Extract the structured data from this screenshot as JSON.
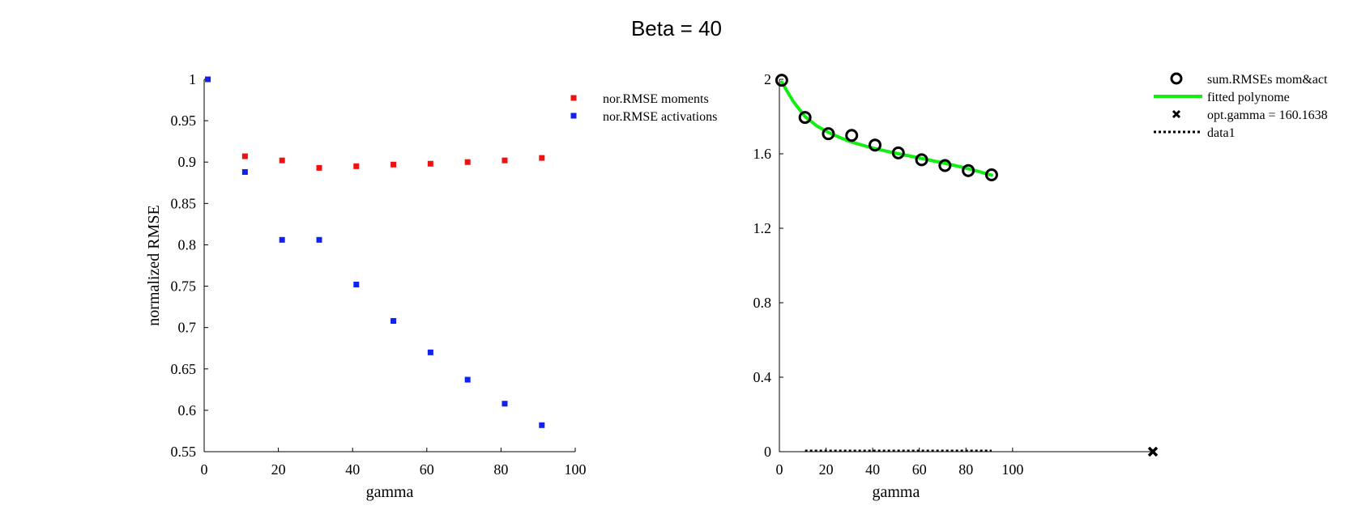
{
  "figure": {
    "title": "Beta = 40"
  },
  "chart_data": [
    {
      "type": "scatter",
      "title": "",
      "xlabel": "gamma",
      "ylabel": "normalized RMSE",
      "xlim": [
        0,
        100
      ],
      "ylim": [
        0.55,
        1
      ],
      "xticks": [
        "0",
        "20",
        "40",
        "60",
        "80",
        "100"
      ],
      "yticks": [
        "0.55",
        "0.6",
        "0.65",
        "0.7",
        "0.75",
        "0.8",
        "0.85",
        "0.9",
        "0.95",
        "1"
      ],
      "grid": false,
      "legend_position": "top-right",
      "series": [
        {
          "name": "nor.RMSE moments",
          "color": "#ee1111",
          "marker": "square",
          "x": [
            11,
            21,
            31,
            41,
            51,
            61,
            71,
            81,
            91
          ],
          "y": [
            0.907,
            0.902,
            0.893,
            0.895,
            0.897,
            0.898,
            0.9,
            0.902,
            0.905
          ]
        },
        {
          "name": "nor.RMSE activations",
          "color": "#1122ee",
          "marker": "square",
          "x": [
            1,
            11,
            21,
            31,
            41,
            51,
            61,
            71,
            81,
            91
          ],
          "y": [
            1.0,
            0.888,
            0.806,
            0.806,
            0.752,
            0.708,
            0.67,
            0.637,
            0.608,
            0.582
          ]
        }
      ]
    },
    {
      "type": "line",
      "title": "",
      "xlabel": "gamma",
      "ylabel": "",
      "xlim": [
        0,
        160.1638
      ],
      "ylim": [
        0,
        2
      ],
      "xticks": [
        "0",
        "20",
        "40",
        "60",
        "80",
        "100"
      ],
      "yticks": [
        "0",
        "0.4",
        "0.8",
        "1.2",
        "1.6",
        "2"
      ],
      "grid": false,
      "legend_position": "top-right-outside",
      "series": [
        {
          "name": "sum.RMSEs mom&act",
          "color": "#000000",
          "marker": "circle",
          "x": [
            1,
            11,
            21,
            31,
            41,
            51,
            61,
            71,
            81,
            91
          ],
          "y": [
            1.995,
            1.795,
            1.708,
            1.699,
            1.647,
            1.605,
            1.568,
            1.537,
            1.51,
            1.487
          ]
        },
        {
          "name": "fitted polynome",
          "color": "#11ee11",
          "marker": "line",
          "x": [
            1,
            6,
            11,
            16,
            21,
            26,
            31,
            36,
            41,
            46,
            51,
            56,
            61,
            66,
            71,
            76,
            81,
            86,
            91
          ],
          "y": [
            1.985,
            1.88,
            1.8,
            1.75,
            1.715,
            1.687,
            1.663,
            1.645,
            1.628,
            1.614,
            1.6,
            1.588,
            1.575,
            1.562,
            1.549,
            1.535,
            1.52,
            1.503,
            1.485
          ]
        },
        {
          "name": "opt.gamma = 160.1638",
          "color": "#000000",
          "marker": "x",
          "x": [
            160.1638
          ],
          "y": [
            0
          ]
        },
        {
          "name": "data1",
          "color": "#000000",
          "marker": "dotted-line",
          "x": [
            11,
            91
          ],
          "y": [
            0,
            0
          ]
        }
      ]
    }
  ]
}
